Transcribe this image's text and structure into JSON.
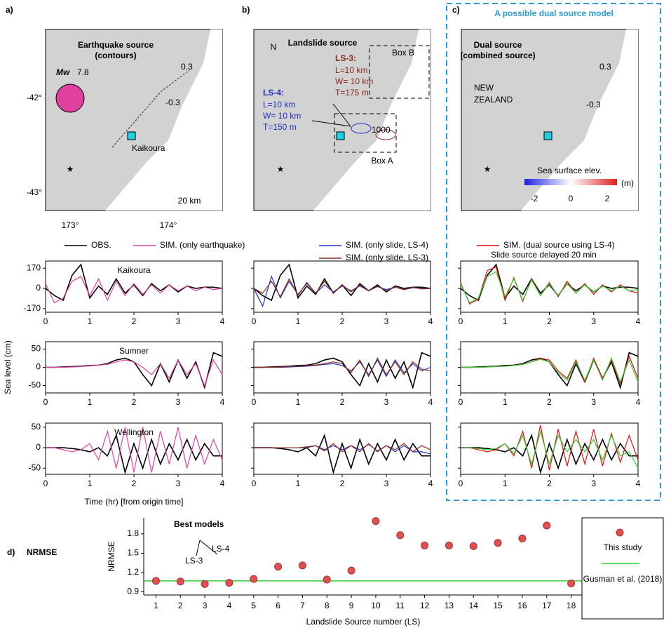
{
  "maps": {
    "a": {
      "label": "a)",
      "title1": "Earthquake source",
      "title2": "(contours)",
      "mw": "Mw",
      "mag": "7.8",
      "place": "Kaikoura",
      "scale": "20 km",
      "lat1": "-42°",
      "lat2": "-43°",
      "lon1": "173°",
      "lon2": "174°",
      "c1": "0.3",
      "c2": "-0.3"
    },
    "b": {
      "label": "b)",
      "north": "N",
      "title": "Landslide source",
      "ls3": "LS-3:",
      "ls3l": "L=10 km",
      "ls3w": "W= 10 km",
      "ls3t": "T=175 m",
      "ls4": "LS-4:",
      "ls4l": "L=10 km",
      "ls4w": "W= 10 km",
      "ls4t": "T=150 m",
      "boxb": "Box B",
      "boxa": "Box A",
      "c": "1000"
    },
    "c": {
      "label": "c)",
      "header": "A possible dual source model",
      "title1": "Dual source",
      "title2": "(combined source)",
      "nz1": "NEW",
      "nz2": "ZEALAND",
      "cbar": "Sea surface elev.",
      "cmin": "-2",
      "cmid": "0",
      "cmax": "2",
      "unit": "(m)",
      "c1": "0.3",
      "c2": "-0.3"
    }
  },
  "chart_data": [
    {
      "type": "line",
      "title": "Kaikoura",
      "xlim": [
        0,
        4
      ],
      "xticks": [
        0,
        1,
        2,
        3,
        4
      ],
      "ylim": [
        -200,
        230
      ],
      "yticks": [
        -170,
        0,
        170
      ],
      "x": [
        0,
        0.2,
        0.4,
        0.6,
        0.8,
        1,
        1.2,
        1.4,
        1.6,
        1.8,
        2,
        2.2,
        2.4,
        2.6,
        2.8,
        3,
        3.2,
        3.4,
        3.6,
        3.8,
        4
      ],
      "series": [
        {
          "name": "OBS.",
          "color": "#000000",
          "values": [
            0,
            -60,
            -100,
            110,
            200,
            -80,
            20,
            -50,
            80,
            -40,
            30,
            -60,
            40,
            -20,
            30,
            -30,
            20,
            0,
            10,
            10,
            0
          ]
        },
        {
          "name": "SIM. (only earthquake)",
          "color": "#e040a0",
          "values": [
            40,
            -120,
            -80,
            60,
            100,
            -60,
            80,
            -100,
            60,
            -60,
            40,
            -50,
            30,
            -40,
            30,
            -20,
            20,
            -20,
            10,
            -10,
            0
          ]
        }
      ]
    },
    {
      "type": "line",
      "title": "Sumner",
      "y_label": "Sea level (cm)",
      "xlim": [
        0,
        4
      ],
      "xticks": [
        0,
        1,
        2,
        3,
        4
      ],
      "ylim": [
        -70,
        70
      ],
      "yticks": [
        -50,
        0,
        50
      ],
      "x": [
        0,
        0.2,
        0.4,
        0.6,
        0.8,
        1,
        1.2,
        1.4,
        1.6,
        1.8,
        2,
        2.2,
        2.4,
        2.6,
        2.8,
        3,
        3.2,
        3.4,
        3.6,
        3.8,
        4
      ],
      "series": [
        {
          "color": "#000000",
          "values": [
            0,
            0,
            1,
            2,
            3,
            5,
            6,
            10,
            20,
            25,
            15,
            -20,
            -50,
            10,
            -40,
            20,
            -30,
            15,
            -55,
            40,
            30
          ]
        },
        {
          "color": "#e040a0",
          "values": [
            0,
            0,
            0,
            1,
            2,
            4,
            6,
            8,
            15,
            20,
            15,
            0,
            -20,
            10,
            -30,
            20,
            -20,
            10,
            -50,
            20,
            -20
          ]
        }
      ]
    },
    {
      "type": "line",
      "title": "Wellington",
      "x_label": "Time (hr) [from origin time]",
      "xlim": [
        0,
        4
      ],
      "xticks": [
        0,
        1,
        2,
        3,
        4
      ],
      "ylim": [
        -65,
        60
      ],
      "yticks": [
        -50,
        0,
        50
      ],
      "x": [
        0,
        0.2,
        0.4,
        0.6,
        0.8,
        1,
        1.2,
        1.4,
        1.6,
        1.8,
        2,
        2.2,
        2.4,
        2.6,
        2.8,
        3,
        3.2,
        3.4,
        3.6,
        3.8,
        4
      ],
      "series": [
        {
          "color": "#000000",
          "values": [
            0,
            0,
            0,
            -2,
            -5,
            -10,
            0,
            -20,
            30,
            -60,
            10,
            -50,
            20,
            -40,
            10,
            -30,
            20,
            -30,
            10,
            -20,
            -20
          ]
        },
        {
          "color": "#e040a0",
          "values": [
            0,
            0,
            -5,
            -10,
            -5,
            10,
            -30,
            40,
            -50,
            50,
            -60,
            50,
            -60,
            40,
            -40,
            50,
            -50,
            30,
            -40,
            20,
            -30
          ]
        }
      ]
    },
    {
      "type": "line",
      "xlim": [
        0,
        4
      ],
      "xticks": [
        0,
        1,
        2,
        3,
        4
      ],
      "ylim": [
        -200,
        230
      ],
      "yticks": [
        -170,
        0,
        170
      ],
      "x": [
        0,
        0.2,
        0.4,
        0.6,
        0.8,
        1,
        1.2,
        1.4,
        1.6,
        1.8,
        2,
        2.2,
        2.4,
        2.6,
        2.8,
        3,
        3.2,
        3.4,
        3.6,
        3.8,
        4
      ],
      "series": [
        {
          "color": "#000000",
          "values": [
            0,
            -60,
            -100,
            110,
            200,
            -80,
            20,
            -50,
            80,
            -40,
            30,
            -60,
            40,
            -20,
            30,
            -30,
            20,
            0,
            10,
            10,
            0
          ]
        },
        {
          "name": "SIM. (only slide, LS-4)",
          "color": "#2030c0",
          "values": [
            0,
            -150,
            100,
            -80,
            60,
            -50,
            40,
            -40,
            30,
            -30,
            20,
            -20,
            20,
            -20,
            15,
            -10,
            10,
            -10,
            5,
            0,
            0
          ]
        },
        {
          "name": "SIM. (only slide, LS-3)",
          "color": "#8b2a1a",
          "values": [
            0,
            -40,
            60,
            -70,
            80,
            -60,
            50,
            -40,
            60,
            -40,
            30,
            -30,
            30,
            -20,
            20,
            -20,
            10,
            -10,
            10,
            -5,
            0
          ]
        }
      ]
    },
    {
      "type": "line",
      "xlim": [
        0,
        4
      ],
      "xticks": [
        0,
        1,
        2,
        3,
        4
      ],
      "ylim": [
        -70,
        70
      ],
      "yticks": [
        -50,
        0,
        50
      ],
      "x": [
        0,
        0.2,
        0.4,
        0.6,
        0.8,
        1,
        1.2,
        1.4,
        1.6,
        1.8,
        2,
        2.2,
        2.4,
        2.6,
        2.8,
        3,
        3.2,
        3.4,
        3.6,
        3.8,
        4
      ],
      "series": [
        {
          "color": "#000000",
          "values": [
            0,
            0,
            1,
            2,
            3,
            5,
            6,
            10,
            20,
            25,
            15,
            -20,
            -50,
            10,
            -40,
            20,
            -30,
            15,
            -55,
            40,
            30
          ]
        },
        {
          "color": "#2030c0",
          "values": [
            0,
            0,
            0,
            0,
            1,
            2,
            3,
            5,
            8,
            10,
            5,
            -10,
            15,
            -20,
            20,
            -25,
            20,
            -15,
            10,
            -10,
            0
          ]
        },
        {
          "color": "#8b2a1a",
          "values": [
            0,
            0,
            0,
            1,
            2,
            3,
            5,
            6,
            10,
            15,
            10,
            -15,
            20,
            -25,
            25,
            -20,
            15,
            -20,
            15,
            -5,
            -10
          ]
        }
      ]
    },
    {
      "type": "line",
      "xlim": [
        0,
        4
      ],
      "xticks": [
        0,
        1,
        2,
        3,
        4
      ],
      "ylim": [
        -65,
        60
      ],
      "yticks": [
        -50,
        0,
        50
      ],
      "x": [
        0,
        0.2,
        0.4,
        0.6,
        0.8,
        1,
        1.2,
        1.4,
        1.6,
        1.8,
        2,
        2.2,
        2.4,
        2.6,
        2.8,
        3,
        3.2,
        3.4,
        3.6,
        3.8,
        4
      ],
      "series": [
        {
          "color": "#000000",
          "values": [
            0,
            0,
            0,
            -2,
            -5,
            -10,
            0,
            -20,
            30,
            -60,
            10,
            -50,
            20,
            -40,
            10,
            -30,
            20,
            -30,
            10,
            -20,
            -20
          ]
        },
        {
          "color": "#2030c0",
          "values": [
            0,
            0,
            0,
            0,
            0,
            0,
            0,
            5,
            -5,
            5,
            -5,
            5,
            -5,
            8,
            -8,
            5,
            -10,
            5,
            -10,
            -10,
            -15
          ]
        },
        {
          "color": "#8b2a1a",
          "values": [
            0,
            0,
            0,
            0,
            0,
            0,
            2,
            5,
            -8,
            10,
            -10,
            5,
            -10,
            10,
            -10,
            5,
            -5,
            10,
            -10,
            5,
            -5
          ]
        }
      ]
    },
    {
      "type": "line",
      "note": "Slide source delayed 20 min",
      "xlim": [
        0,
        4
      ],
      "xticks": [
        0,
        1,
        2,
        3,
        4
      ],
      "ylim": [
        -200,
        230
      ],
      "yticks": [
        -170,
        0,
        170
      ],
      "x": [
        0,
        0.2,
        0.4,
        0.6,
        0.8,
        1,
        1.2,
        1.4,
        1.6,
        1.8,
        2,
        2.2,
        2.4,
        2.6,
        2.8,
        3,
        3.2,
        3.4,
        3.6,
        3.8,
        4
      ],
      "series": [
        {
          "color": "#000000",
          "values": [
            0,
            -60,
            -100,
            110,
            200,
            -80,
            20,
            -50,
            80,
            -40,
            30,
            -60,
            40,
            -20,
            30,
            -30,
            20,
            0,
            10,
            10,
            0
          ]
        },
        {
          "name": "SIM. (dual source using LS-4)",
          "color": "#e01010",
          "values": [
            50,
            -130,
            -90,
            150,
            180,
            -100,
            90,
            -110,
            80,
            -60,
            50,
            -70,
            60,
            -40,
            40,
            -50,
            30,
            -30,
            30,
            -20,
            -40
          ]
        },
        {
          "color": "#30d030",
          "values": [
            40,
            -120,
            -80,
            100,
            140,
            -70,
            80,
            -100,
            70,
            -60,
            40,
            -60,
            40,
            -40,
            30,
            -30,
            20,
            -20,
            20,
            -20,
            -10
          ]
        }
      ]
    },
    {
      "type": "line",
      "xlim": [
        0,
        4
      ],
      "xticks": [
        0,
        1,
        2,
        3,
        4
      ],
      "ylim": [
        -70,
        70
      ],
      "yticks": [
        -50,
        0,
        50
      ],
      "x": [
        0,
        0.2,
        0.4,
        0.6,
        0.8,
        1,
        1.2,
        1.4,
        1.6,
        1.8,
        2,
        2.2,
        2.4,
        2.6,
        2.8,
        3,
        3.2,
        3.4,
        3.6,
        3.8,
        4
      ],
      "series": [
        {
          "color": "#000000",
          "values": [
            0,
            0,
            1,
            2,
            3,
            5,
            6,
            10,
            20,
            25,
            15,
            -20,
            -50,
            10,
            -40,
            20,
            -30,
            15,
            -55,
            40,
            30
          ]
        },
        {
          "color": "#e01010",
          "values": [
            0,
            0,
            0,
            1,
            2,
            3,
            5,
            8,
            15,
            25,
            20,
            -10,
            -30,
            20,
            -40,
            25,
            -30,
            20,
            -45,
            30,
            -30
          ]
        },
        {
          "color": "#30d030",
          "values": [
            0,
            0,
            0,
            1,
            2,
            3,
            5,
            8,
            15,
            22,
            15,
            -15,
            -35,
            15,
            -35,
            20,
            -35,
            25,
            -40,
            20,
            -40
          ]
        }
      ]
    },
    {
      "type": "line",
      "xlim": [
        0,
        4
      ],
      "xticks": [
        0,
        1,
        2,
        3,
        4
      ],
      "ylim": [
        -65,
        60
      ],
      "yticks": [
        -50,
        0,
        50
      ],
      "x": [
        0,
        0.2,
        0.4,
        0.6,
        0.8,
        1,
        1.2,
        1.4,
        1.6,
        1.8,
        2,
        2.2,
        2.4,
        2.6,
        2.8,
        3,
        3.2,
        3.4,
        3.6,
        3.8,
        4
      ],
      "series": [
        {
          "color": "#000000",
          "values": [
            0,
            0,
            0,
            -2,
            -5,
            -10,
            0,
            -20,
            30,
            -60,
            10,
            -50,
            20,
            -40,
            10,
            -30,
            20,
            -30,
            10,
            -20,
            -20
          ]
        },
        {
          "color": "#e01010",
          "values": [
            0,
            0,
            -5,
            -10,
            -5,
            10,
            -20,
            40,
            -50,
            55,
            -55,
            45,
            -45,
            40,
            -40,
            45,
            -45,
            35,
            -35,
            30,
            -30
          ]
        },
        {
          "color": "#30d030",
          "values": [
            0,
            0,
            -2,
            -5,
            -2,
            10,
            -15,
            30,
            -40,
            40,
            -40,
            30,
            -10,
            20,
            -10,
            20,
            -30,
            30,
            -20,
            -10,
            -50
          ]
        }
      ]
    },
    {
      "type": "scatter",
      "label": "d)",
      "title": "NRMSE",
      "y_label": "NRMSE",
      "x_label": "Landslide Source number (LS)",
      "annotations": [
        "Best models",
        "LS-3",
        "LS-4"
      ],
      "xlim": [
        0.5,
        18.5
      ],
      "xticks": [
        1,
        2,
        3,
        4,
        5,
        6,
        7,
        8,
        9,
        10,
        11,
        12,
        13,
        14,
        15,
        16,
        17,
        18
      ],
      "ylim": [
        0.85,
        2.05
      ],
      "yticks": [
        0.9,
        1.2,
        1.5,
        1.8
      ],
      "x": [
        1,
        2,
        3,
        4,
        5,
        6,
        7,
        8,
        9,
        10,
        11,
        12,
        13,
        14,
        15,
        16,
        17,
        18
      ],
      "series": [
        {
          "name": "This study",
          "color": "#e05050",
          "values": [
            1.07,
            1.06,
            1.02,
            1.04,
            1.1,
            1.29,
            1.31,
            1.09,
            1.23,
            2.0,
            1.78,
            1.62,
            1.62,
            1.61,
            1.66,
            1.73,
            1.93,
            1.03
          ]
        }
      ],
      "reference_line": {
        "name": "Gusman et al. (2018)",
        "value": 1.07,
        "color": "#30d030"
      }
    }
  ]
}
